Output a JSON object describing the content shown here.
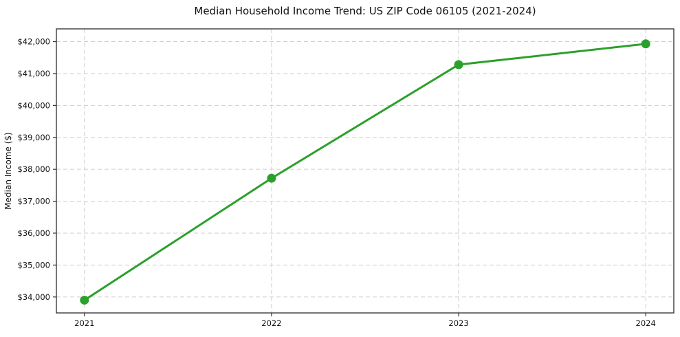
{
  "chart_data": {
    "type": "line",
    "title": "Median Household Income Trend: US ZIP Code 06105 (2021-2024)",
    "xlabel": "",
    "ylabel": "Median Income ($)",
    "x": [
      2021,
      2022,
      2023,
      2024
    ],
    "x_tick_labels": [
      "2021",
      "2022",
      "2023",
      "2024"
    ],
    "series": [
      {
        "name": "Median Household Income",
        "values": [
          33900,
          37720,
          41280,
          41930
        ],
        "color": "#2ca02c",
        "marker": "circle",
        "line_width": 3,
        "marker_radius": 6.5
      }
    ],
    "y_ticks": [
      34000,
      35000,
      36000,
      37000,
      38000,
      39000,
      40000,
      41000,
      42000
    ],
    "y_tick_labels": [
      "$34,000",
      "$35,000",
      "$36,000",
      "$37,000",
      "$38,000",
      "$39,000",
      "$40,000",
      "$41,000",
      "$42,000"
    ],
    "ylim": [
      33500,
      42400
    ],
    "xlim": [
      2020.85,
      2024.15
    ],
    "grid": true,
    "grid_style": "dashed",
    "legend_position": "none",
    "colors": {
      "line": "#2ca02c",
      "grid": "#cdcdcd",
      "frame": "#2b2b2b",
      "text": "#111111",
      "background": "#ffffff"
    }
  }
}
